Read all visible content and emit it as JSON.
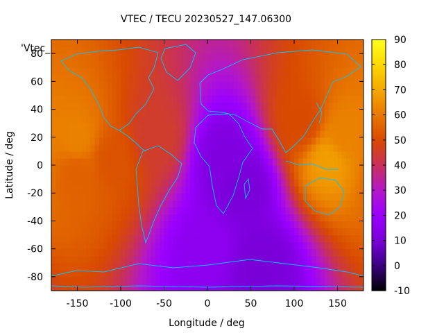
{
  "chart_data": {
    "type": "heatmap",
    "title": "VTEC / TECU 20230527_147.06300",
    "xlabel": "Longitude / deg",
    "ylabel": "Latitude / deg",
    "xlim": [
      -180,
      180
    ],
    "ylim": [
      -90,
      90
    ],
    "x_ticks": [
      -150,
      -100,
      -50,
      0,
      50,
      100,
      150
    ],
    "y_ticks": [
      -80,
      -60,
      -40,
      -20,
      0,
      20,
      40,
      60,
      80
    ],
    "colorbar": {
      "range": [
        -10,
        90
      ],
      "ticks": [
        -10,
        0,
        10,
        20,
        30,
        40,
        50,
        60,
        70,
        80,
        90
      ],
      "palette": [
        "#000000",
        "#3a0080",
        "#7a00d8",
        "#9a00ff",
        "#b418c8",
        "#c8305a",
        "#d84a00",
        "#e87800",
        "#f4a800",
        "#fcd800",
        "#ffff20"
      ]
    },
    "legend_label": "'Vtec_",
    "grid": false,
    "coastline_color": "#00c8ff",
    "regions": [
      {
        "lon": -150,
        "lat": 18,
        "vtec": 62
      },
      {
        "lon": -110,
        "lat": 5,
        "vtec": 52
      },
      {
        "lon": -150,
        "lat": -5,
        "vtec": 55
      },
      {
        "lon": -60,
        "lat": 20,
        "vtec": 45
      },
      {
        "lon": 140,
        "lat": 5,
        "vtec": 68
      },
      {
        "lon": 155,
        "lat": 20,
        "vtec": 62
      },
      {
        "lon": 110,
        "lat": 30,
        "vtec": 50
      },
      {
        "lon": 40,
        "lat": -15,
        "vtec": 10
      },
      {
        "lon": 20,
        "lat": 5,
        "vtec": 12
      },
      {
        "lon": 0,
        "lat": -60,
        "vtec": 16
      },
      {
        "lon": 60,
        "lat": -70,
        "vtec": 10
      }
    ]
  }
}
